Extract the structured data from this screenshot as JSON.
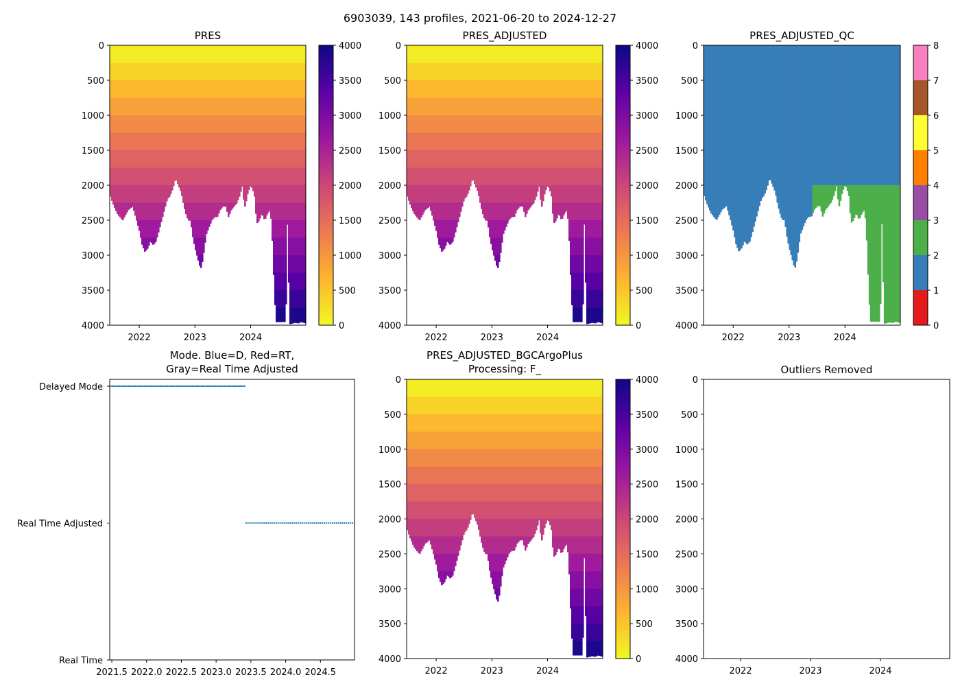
{
  "suptitle": "6903039, 143 profiles, 2021-06-20 to 2024-12-27",
  "colors": {
    "mode_points": "#1f77b4",
    "qc_palette": [
      "#e41a1c",
      "#377eb8",
      "#4daf4a",
      "#984ea3",
      "#ff7f00",
      "#ffff33",
      "#a65628",
      "#f781bf",
      "#999999"
    ],
    "plasma_stops": [
      "#f0f921",
      "#fdb42f",
      "#ed7953",
      "#cc4778",
      "#9c179e",
      "#5c01a6",
      "#0d0887"
    ]
  },
  "chart_data": [
    {
      "id": "pres",
      "type": "heatmap",
      "title": "PRES",
      "colormap": "plasma_r",
      "x_years": [
        2021.47,
        2024.99
      ],
      "x_ticks": [
        2022,
        2023,
        2024
      ],
      "x_tick_labels": [
        "2022",
        "2023",
        "2024"
      ],
      "ylim": [
        4000,
        0
      ],
      "y_ticks": [
        0,
        500,
        1000,
        1500,
        2000,
        2500,
        3000,
        3500,
        4000
      ],
      "y_tick_labels": [
        "0",
        "500",
        "1000",
        "1500",
        "2000",
        "2500",
        "3000",
        "3500",
        "4000"
      ],
      "colorbar": {
        "range": [
          0,
          4000
        ],
        "ticks": [
          0,
          500,
          1000,
          1500,
          2000,
          2500,
          3000,
          3500,
          4000
        ],
        "tick_labels": [
          "0",
          "500",
          "1000",
          "1500",
          "2000",
          "2500",
          "3000",
          "3500",
          "4000"
        ]
      },
      "profile_depth_knots": {
        "x": [
          2021.48,
          2021.52,
          2021.6,
          2021.7,
          2021.8,
          2021.88,
          2021.95,
          2022.0,
          2022.05,
          2022.1,
          2022.15,
          2022.2,
          2022.25,
          2022.3,
          2022.35,
          2022.4,
          2022.45,
          2022.5,
          2022.55,
          2022.6,
          2022.65,
          2022.7,
          2022.75,
          2022.8,
          2022.85,
          2022.88,
          2022.92,
          2022.95,
          2023.0,
          2023.05,
          2023.1,
          2023.13,
          2023.15,
          2023.2,
          2023.25,
          2023.3,
          2023.35,
          2023.4,
          2023.45,
          2023.5,
          2023.55,
          2023.6,
          2023.65,
          2023.7,
          2023.75,
          2023.8,
          2023.85,
          2023.88,
          2023.9,
          2023.95,
          2024.0,
          2024.03,
          2024.05,
          2024.08,
          2024.1,
          2024.15,
          2024.2,
          2024.25,
          2024.3,
          2024.35,
          2024.38,
          2024.41,
          2024.43,
          2024.45,
          2024.55,
          2024.6,
          2024.63,
          2024.65,
          2024.7,
          2024.75,
          2024.8,
          2024.85,
          2024.9,
          2024.95,
          2024.99
        ],
        "depth": [
          2150,
          2250,
          2400,
          2500,
          2350,
          2300,
          2500,
          2650,
          2850,
          2950,
          2900,
          2800,
          2850,
          2800,
          2650,
          2500,
          2350,
          2200,
          2150,
          2050,
          1900,
          2000,
          2100,
          2300,
          2450,
          2500,
          2500,
          2700,
          2900,
          3050,
          3200,
          3100,
          3000,
          2700,
          2600,
          2500,
          2450,
          2450,
          2350,
          2300,
          2300,
          2450,
          2350,
          2300,
          2250,
          2150,
          2000,
          2300,
          2300,
          2100,
          2000,
          2050,
          2100,
          2200,
          2550,
          2500,
          2400,
          2500,
          2400,
          2350,
          2650,
          3250,
          3600,
          3950,
          3950,
          3950,
          3950,
          2300,
          3980,
          3970,
          3960,
          3970,
          3950,
          3960,
          3970
        ]
      },
      "missing_strip_x": [
        2024.66,
        2024.68
      ],
      "missing_strip_depth": [
        0,
        270
      ]
    },
    {
      "id": "pres_adj",
      "type": "heatmap",
      "title": "PRES_ADJUSTED",
      "colormap": "plasma_r",
      "x_years": [
        2021.47,
        2024.99
      ],
      "x_ticks": [
        2022,
        2023,
        2024
      ],
      "x_tick_labels": [
        "2022",
        "2023",
        "2024"
      ],
      "ylim": [
        4000,
        0
      ],
      "y_ticks": [
        0,
        500,
        1000,
        1500,
        2000,
        2500,
        3000,
        3500,
        4000
      ],
      "y_tick_labels": [
        "0",
        "500",
        "1000",
        "1500",
        "2000",
        "2500",
        "3000",
        "3500",
        "4000"
      ],
      "colorbar": {
        "range": [
          0,
          4000
        ],
        "ticks": [
          0,
          500,
          1000,
          1500,
          2000,
          2500,
          3000,
          3500,
          4000
        ],
        "tick_labels": [
          "0",
          "500",
          "1000",
          "1500",
          "2000",
          "2500",
          "3000",
          "3500",
          "4000"
        ]
      },
      "same_profile_as": "pres"
    },
    {
      "id": "pres_qc",
      "type": "heatmap",
      "title": "PRES_ADJUSTED_QC",
      "colormap": "qc_palette",
      "x_years": [
        2021.47,
        2024.99
      ],
      "x_ticks": [
        2022,
        2023,
        2024
      ],
      "x_tick_labels": [
        "2022",
        "2023",
        "2024"
      ],
      "ylim": [
        4000,
        0
      ],
      "y_ticks": [
        0,
        500,
        1000,
        1500,
        2000,
        2500,
        3000,
        3500,
        4000
      ],
      "y_tick_labels": [
        "0",
        "500",
        "1000",
        "1500",
        "2000",
        "2500",
        "3000",
        "3500",
        "4000"
      ],
      "colorbar": {
        "range": [
          0,
          8
        ],
        "ticks": [
          0,
          1,
          2,
          3,
          4,
          5,
          6,
          7,
          8
        ],
        "tick_labels": [
          "0",
          "1",
          "2",
          "3",
          "4",
          "5",
          "6",
          "7",
          "8"
        ]
      },
      "qc_rule": {
        "flag_1_before_year": 2023.41,
        "flag_2_after_year": 2023.41,
        "flag_2_below_depth": 2000,
        "upper_flag": 1
      },
      "same_profile_as": "pres"
    },
    {
      "id": "mode",
      "type": "scatter",
      "title": "Mode. Blue=D, Red=RT,",
      "title_line2": "Gray=Real Time Adjusted",
      "xlim": [
        2021.47,
        2024.99
      ],
      "x_ticks": [
        2021.5,
        2022.0,
        2022.5,
        2023.0,
        2023.5,
        2024.0,
        2024.5
      ],
      "x_tick_labels": [
        "2021.5",
        "2022.0",
        "2022.5",
        "2023.0",
        "2023.5",
        "2024.0",
        "2024.5"
      ],
      "y_categories": [
        "Real Time",
        "Real Time Adjusted",
        "Delayed Mode"
      ],
      "ylim": [
        0,
        2.05
      ],
      "series": [
        {
          "name": "Delayed Mode",
          "y": 2,
          "x_range": [
            2021.48,
            2023.41
          ],
          "count": 88
        },
        {
          "name": "Real Time Adjusted",
          "y": 1,
          "x_range": [
            2023.43,
            2024.99
          ],
          "count": 55
        }
      ]
    },
    {
      "id": "pres_bgc",
      "type": "heatmap",
      "title": "PRES_ADJUSTED_BGCArgoPlus",
      "title_line2": "Processing: F_",
      "colormap": "plasma_r",
      "x_years": [
        2021.47,
        2024.99
      ],
      "x_ticks": [
        2022,
        2023,
        2024
      ],
      "x_tick_labels": [
        "2022",
        "2023",
        "2024"
      ],
      "ylim": [
        4000,
        0
      ],
      "y_ticks": [
        0,
        500,
        1000,
        1500,
        2000,
        2500,
        3000,
        3500,
        4000
      ],
      "y_tick_labels": [
        "0",
        "500",
        "1000",
        "1500",
        "2000",
        "2500",
        "3000",
        "3500",
        "4000"
      ],
      "colorbar": {
        "range": [
          0,
          4000
        ],
        "ticks": [
          0,
          500,
          1000,
          1500,
          2000,
          2500,
          3000,
          3500,
          4000
        ],
        "tick_labels": [
          "0",
          "500",
          "1000",
          "1500",
          "2000",
          "2500",
          "3000",
          "3500",
          "4000"
        ]
      },
      "same_profile_as": "pres"
    },
    {
      "id": "outliers",
      "type": "scatter",
      "title": "Outliers Removed",
      "xlim": [
        2021.47,
        2024.99
      ],
      "x_ticks": [
        2022,
        2023,
        2024
      ],
      "x_tick_labels": [
        "2022",
        "2023",
        "2024"
      ],
      "ylim": [
        4000,
        0
      ],
      "y_ticks": [
        0,
        500,
        1000,
        1500,
        2000,
        2500,
        3000,
        3500,
        4000
      ],
      "y_tick_labels": [
        "0",
        "500",
        "1000",
        "1500",
        "2000",
        "2500",
        "3000",
        "3500",
        "4000"
      ],
      "points": []
    }
  ]
}
